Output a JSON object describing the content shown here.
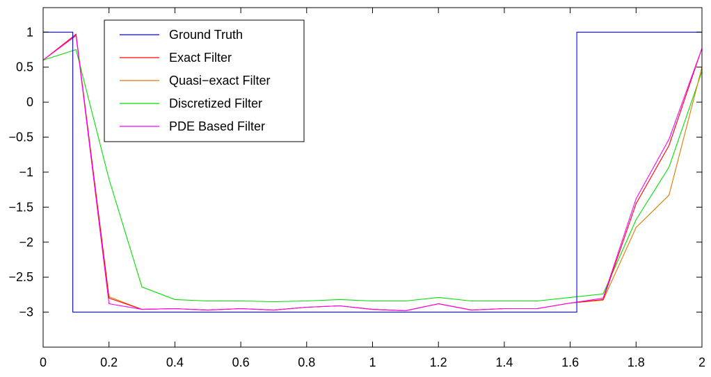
{
  "chart_data": {
    "type": "line",
    "title": "",
    "xlabel": "",
    "ylabel": "",
    "xlim": [
      0,
      2
    ],
    "ylim": [
      -3.5,
      1.35
    ],
    "xticks": [
      0,
      0.2,
      0.4,
      0.6,
      0.8,
      1,
      1.2,
      1.4,
      1.6,
      1.8,
      2
    ],
    "yticks": [
      1,
      0.5,
      0,
      -0.5,
      -1,
      -1.5,
      -2,
      -2.5,
      -3
    ],
    "xtick_labels": [
      "0",
      "0.2",
      "0.4",
      "0.6",
      "0.8",
      "1",
      "1.2",
      "1.4",
      "1.6",
      "1.8",
      "2"
    ],
    "ytick_labels": [
      "1",
      "0.5",
      "0",
      "−0.5",
      "−1",
      "−1.5",
      "−2",
      "−2.5",
      "−3"
    ],
    "grid": false,
    "legend_position": "top-left",
    "series": [
      {
        "name": "Ground Truth",
        "color": "#0000ff",
        "x": [
          0,
          0.09,
          0.09,
          1.62,
          1.62,
          2
        ],
        "y": [
          1,
          1,
          -3,
          -3,
          1,
          1
        ]
      },
      {
        "name": "Exact Filter",
        "color": "#ff0000",
        "x": [
          0,
          0.1,
          0.2,
          0.3,
          0.4,
          0.5,
          0.6,
          0.7,
          0.8,
          0.9,
          1.0,
          1.1,
          1.2,
          1.3,
          1.4,
          1.5,
          1.6,
          1.7,
          1.8,
          1.9,
          2.0
        ],
        "y": [
          0.6,
          0.97,
          -2.8,
          -2.96,
          -2.95,
          -2.97,
          -2.95,
          -2.97,
          -2.93,
          -2.91,
          -2.96,
          -2.98,
          -2.88,
          -2.97,
          -2.95,
          -2.95,
          -2.87,
          -2.82,
          -1.45,
          -0.62,
          0.77
        ]
      },
      {
        "name": "Quasi−exact Filter",
        "color": "#e07800",
        "x": [
          0,
          0.1,
          0.2,
          0.3,
          0.4,
          0.5,
          0.6,
          0.7,
          0.8,
          0.9,
          1.0,
          1.1,
          1.2,
          1.3,
          1.4,
          1.5,
          1.6,
          1.7,
          1.8,
          1.9,
          2.0
        ],
        "y": [
          0.6,
          0.96,
          -2.78,
          -2.96,
          -2.95,
          -2.97,
          -2.95,
          -2.97,
          -2.93,
          -2.91,
          -2.96,
          -2.98,
          -2.88,
          -2.97,
          -2.95,
          -2.95,
          -2.87,
          -2.83,
          -1.79,
          -1.33,
          0.5
        ]
      },
      {
        "name": "Discretized Filter",
        "color": "#00e000",
        "x": [
          0,
          0.1,
          0.2,
          0.3,
          0.4,
          0.5,
          0.6,
          0.7,
          0.8,
          0.9,
          1.0,
          1.1,
          1.2,
          1.3,
          1.4,
          1.5,
          1.6,
          1.7,
          1.8,
          1.9,
          2.0
        ],
        "y": [
          0.6,
          0.75,
          -1.1,
          -2.64,
          -2.82,
          -2.84,
          -2.84,
          -2.85,
          -2.84,
          -2.82,
          -2.84,
          -2.84,
          -2.79,
          -2.84,
          -2.84,
          -2.84,
          -2.79,
          -2.74,
          -1.68,
          -0.93,
          0.44
        ]
      },
      {
        "name": "PDE Based Filter",
        "color": "#ff00ff",
        "x": [
          0,
          0.1,
          0.2,
          0.3,
          0.4,
          0.5,
          0.6,
          0.7,
          0.8,
          0.9,
          1.0,
          1.1,
          1.2,
          1.3,
          1.4,
          1.5,
          1.6,
          1.7,
          1.8,
          1.9,
          2.0
        ],
        "y": [
          0.6,
          0.95,
          -2.88,
          -2.96,
          -2.95,
          -2.97,
          -2.95,
          -2.97,
          -2.93,
          -2.91,
          -2.96,
          -2.98,
          -2.88,
          -2.97,
          -2.95,
          -2.95,
          -2.87,
          -2.8,
          -1.38,
          -0.53,
          0.77
        ]
      }
    ]
  }
}
